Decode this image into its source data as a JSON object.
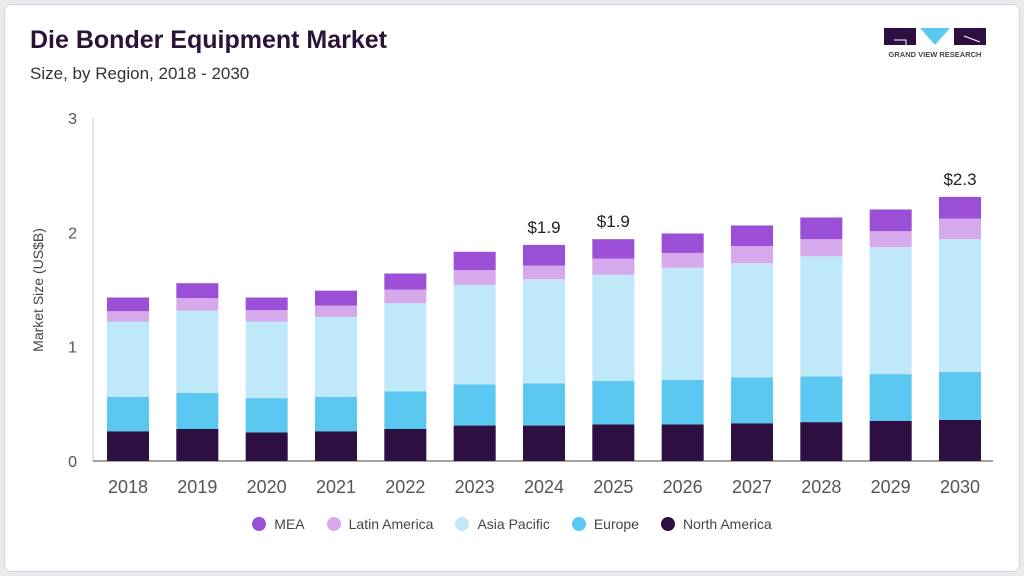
{
  "chart_data": {
    "type": "bar",
    "stacked": true,
    "title": "Die Bonder Equipment Market",
    "subtitle": "Size, by Region, 2018 - 2030",
    "ylabel": "Market Size (US$B)",
    "xlabel": "",
    "ylim": [
      0,
      3
    ],
    "yticks": [
      "0",
      "1",
      "2",
      "3"
    ],
    "categories": [
      "2018",
      "2019",
      "2020",
      "2021",
      "2022",
      "2023",
      "2024",
      "2025",
      "2026",
      "2027",
      "2028",
      "2029",
      "2030"
    ],
    "series": [
      {
        "name": "North America",
        "color": "#2d0f42",
        "values": [
          0.26,
          0.28,
          0.25,
          0.26,
          0.28,
          0.31,
          0.31,
          0.32,
          0.32,
          0.33,
          0.34,
          0.35,
          0.36
        ]
      },
      {
        "name": "Europe",
        "color": "#5bc8f2",
        "values": [
          0.3,
          0.315,
          0.3,
          0.3,
          0.33,
          0.36,
          0.37,
          0.38,
          0.39,
          0.4,
          0.4,
          0.41,
          0.42
        ]
      },
      {
        "name": "Asia Pacific",
        "color": "#bfe8f8",
        "values": [
          0.66,
          0.72,
          0.67,
          0.7,
          0.77,
          0.87,
          0.91,
          0.93,
          0.98,
          1.0,
          1.05,
          1.11,
          1.16
        ]
      },
      {
        "name": "Latin America",
        "color": "#d6a8ec",
        "values": [
          0.09,
          0.11,
          0.1,
          0.1,
          0.12,
          0.13,
          0.12,
          0.14,
          0.13,
          0.15,
          0.15,
          0.14,
          0.18
        ]
      },
      {
        "name": "MEA",
        "color": "#9a4fd6",
        "values": [
          0.12,
          0.13,
          0.11,
          0.13,
          0.14,
          0.16,
          0.18,
          0.17,
          0.17,
          0.18,
          0.19,
          0.19,
          0.19
        ]
      }
    ],
    "annotations": [
      {
        "category": "2024",
        "label": "$1.9"
      },
      {
        "category": "2025",
        "label": "$1.9"
      },
      {
        "category": "2030",
        "label": "$2.3"
      }
    ],
    "legend_position": "bottom",
    "legend_order": [
      "MEA",
      "Latin America",
      "Asia Pacific",
      "Europe",
      "North America"
    ],
    "grid": false
  },
  "logo": {
    "text": "GRAND VIEW RESEARCH"
  }
}
